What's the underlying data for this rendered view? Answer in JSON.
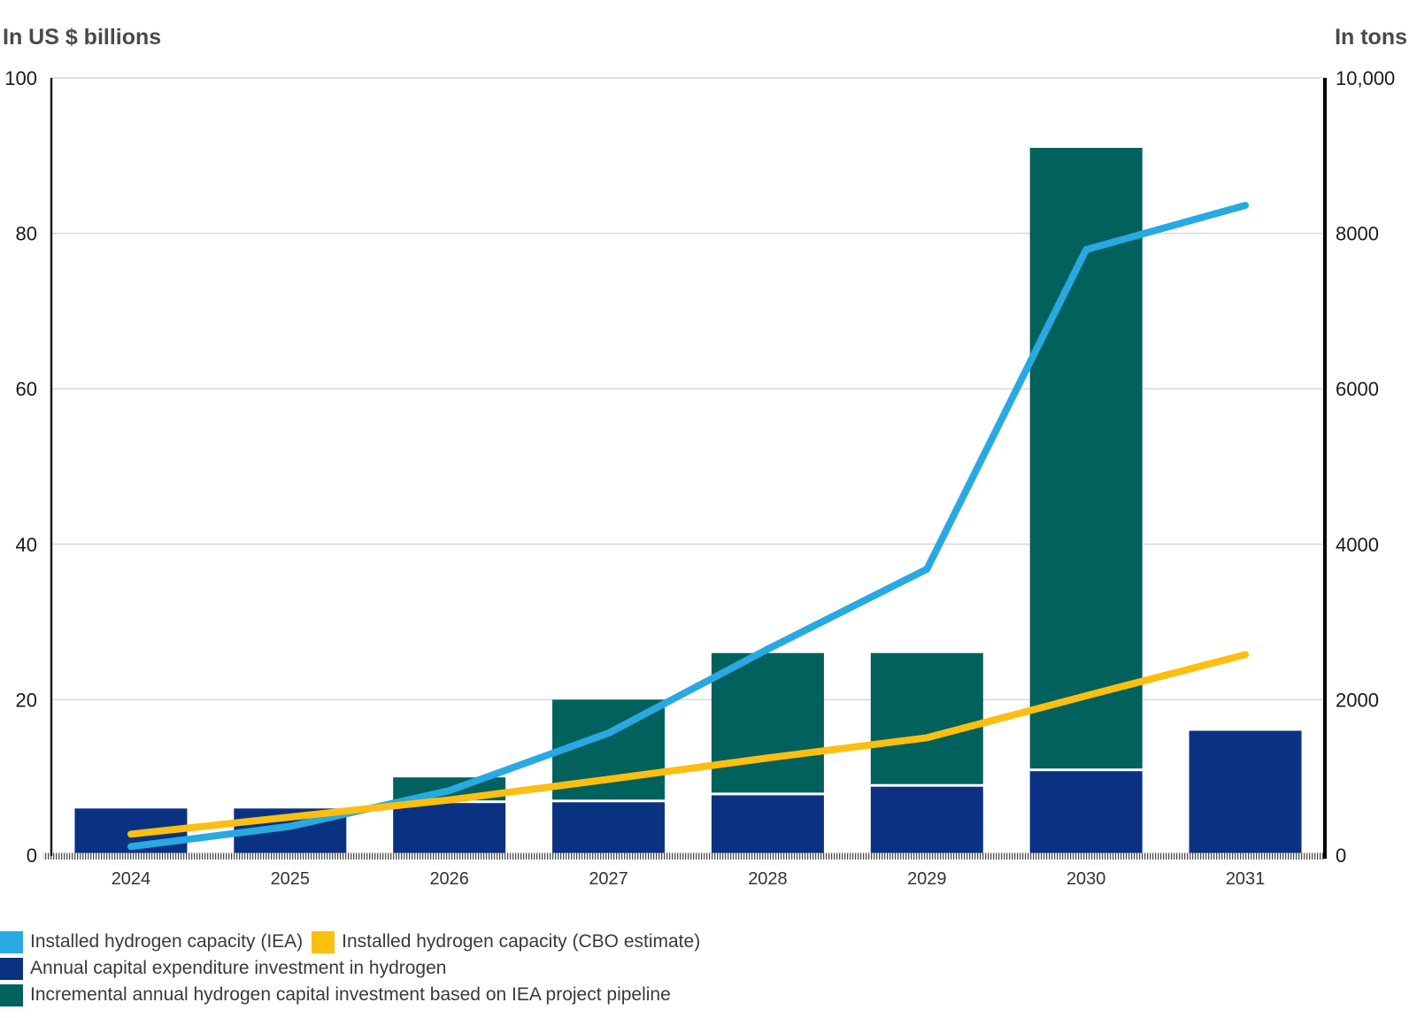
{
  "header": {
    "left_title": "In US $ billions",
    "right_title": "In tons"
  },
  "chart_data": {
    "type": "combo-bar-line",
    "categories": [
      "2024",
      "2025",
      "2026",
      "2027",
      "2028",
      "2029",
      "2030",
      "2031"
    ],
    "left_axis": {
      "title": "In US $ billions",
      "min": 0,
      "max": 100,
      "ticks": [
        0,
        20,
        40,
        60,
        80,
        100
      ],
      "tick_labels": [
        "0",
        "20",
        "40",
        "60",
        "80",
        "100"
      ]
    },
    "right_axis": {
      "title": "In tons",
      "min": 0,
      "max": 10000,
      "ticks": [
        0,
        2000,
        4000,
        6000,
        8000,
        10000
      ],
      "tick_labels": [
        "0",
        "2000",
        "4000",
        "6000",
        "8000",
        "10,000"
      ]
    },
    "grid": true,
    "legend_position": "bottom-left",
    "series": [
      {
        "name": "Installed hydrogen capacity (IEA)",
        "type": "line",
        "axis": "right",
        "color": "#29A9E1",
        "values": [
          110,
          370,
          830,
          1570,
          2650,
          3680,
          7790,
          8360
        ]
      },
      {
        "name": "Installed hydrogen capacity (CBO estimate)",
        "type": "line",
        "axis": "right",
        "color": "#FCBF10",
        "values": [
          270,
          490,
          710,
          975,
          1250,
          1510,
          2050,
          2580
        ]
      },
      {
        "name": "Annual capital expenditure investment in hydrogen",
        "type": "bar",
        "axis": "left",
        "color": "#0B3282",
        "values": [
          6,
          6,
          6.7,
          6.8,
          7.7,
          8.8,
          10.8,
          16
        ]
      },
      {
        "name": "Incremental annual hydrogen capital investment based on IEA project pipeline",
        "type": "bar",
        "axis": "left",
        "color": "#00615D",
        "values": [
          0,
          0,
          3.3,
          13.2,
          18.3,
          17.2,
          80.2,
          0
        ]
      }
    ],
    "style": {
      "grid_color": "#D8D8D8",
      "left_axis_line_color": "#1A1A1A",
      "right_axis_line_color": "#000000",
      "baseline_hatch_color": "#4D4D4D",
      "tick_text_color": "#1A1A1A",
      "category_text_color": "#333333",
      "background": "#FFFFFF"
    }
  }
}
